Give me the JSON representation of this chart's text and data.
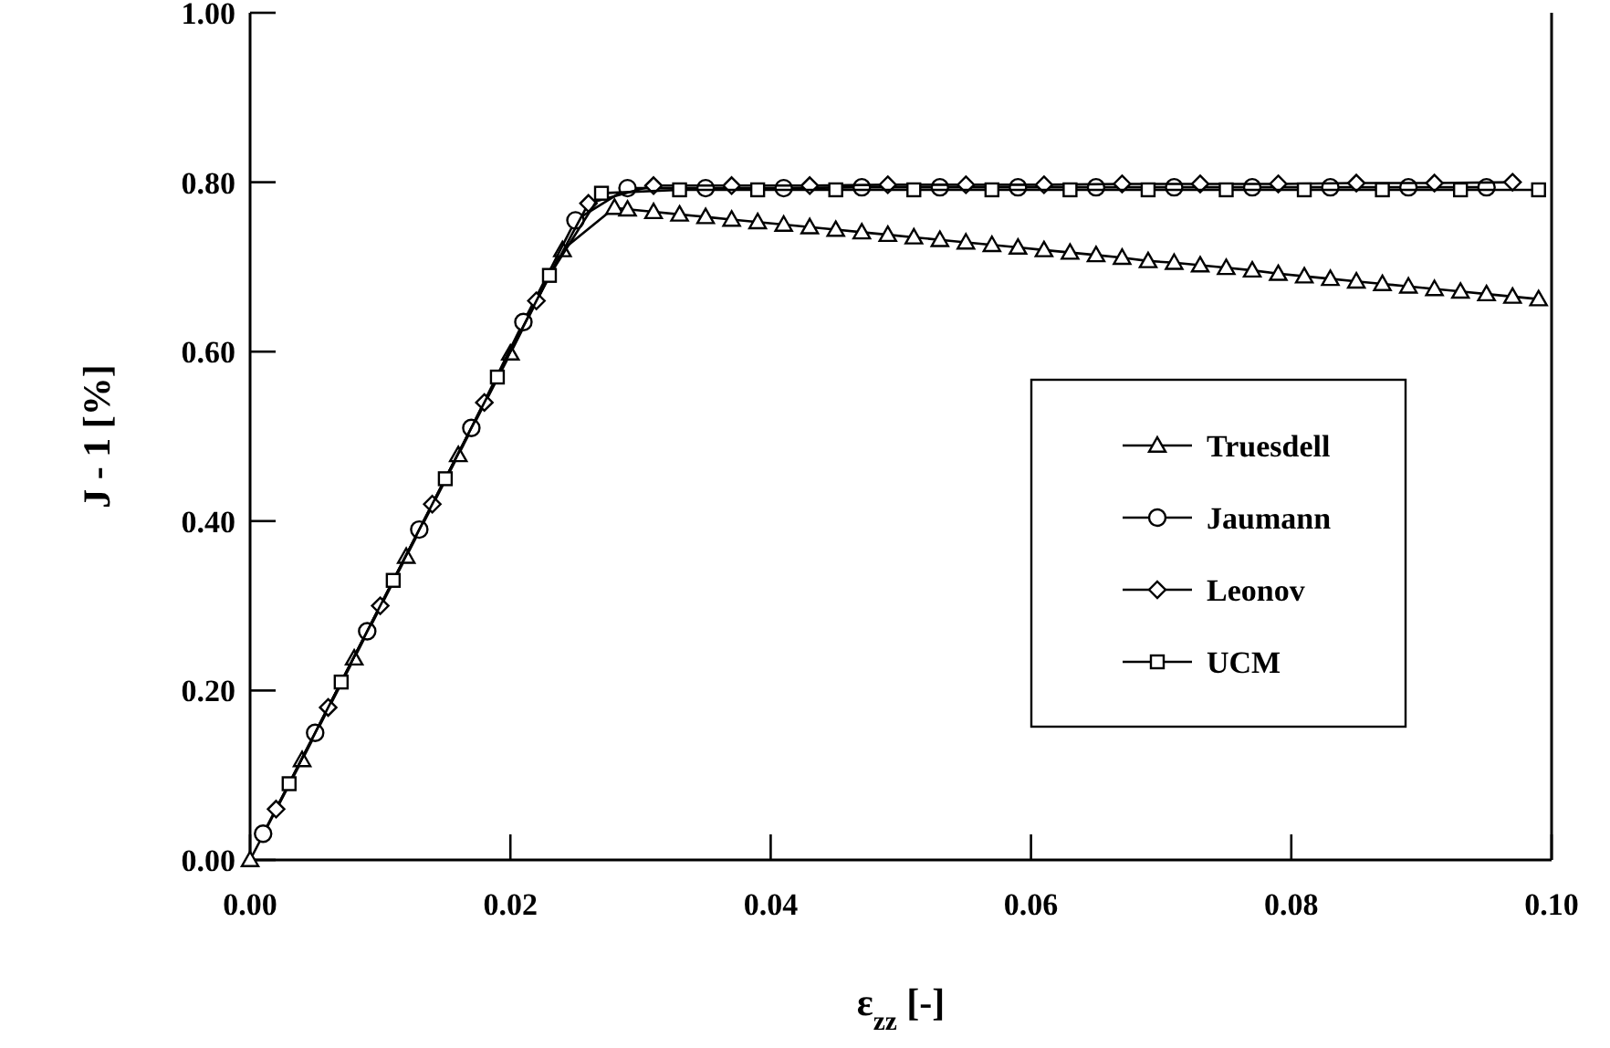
{
  "chart_data": {
    "type": "line",
    "xlabel": "ε$_{zz}$ [-]",
    "ylabel": "J - 1 [%]",
    "xlim": [
      0,
      0.1
    ],
    "ylim": [
      0,
      1
    ],
    "xticks": [
      {
        "value": 0,
        "label": "0.00"
      },
      {
        "value": 0.02,
        "label": "0.02"
      },
      {
        "value": 0.04,
        "label": "0.04"
      },
      {
        "value": 0.06,
        "label": "0.06"
      },
      {
        "value": 0.08,
        "label": "0.08"
      },
      {
        "value": 0.1,
        "label": "0.10"
      }
    ],
    "yticks": [
      {
        "value": 0,
        "label": "0.00"
      },
      {
        "value": 0.2,
        "label": "0.20"
      },
      {
        "value": 0.4,
        "label": "0.40"
      },
      {
        "value": 0.6,
        "label": "0.60"
      },
      {
        "value": 0.8,
        "label": "0.80"
      },
      {
        "value": 1,
        "label": "1.00"
      }
    ],
    "legend": "right",
    "grid": false,
    "line_style": "solid",
    "series": [
      {
        "name": "Truesdell",
        "color": "#000000",
        "marker": "triangle",
        "x": [
          0,
          0.004,
          0.008,
          0.012,
          0.016,
          0.02,
          0.024,
          0.028,
          0.029,
          0.031,
          0.033,
          0.035,
          0.037,
          0.039,
          0.041,
          0.043,
          0.045,
          0.047,
          0.049,
          0.051,
          0.053,
          0.055,
          0.057,
          0.059,
          0.061,
          0.063,
          0.065,
          0.067,
          0.069,
          0.071,
          0.073,
          0.075,
          0.077,
          0.079,
          0.081,
          0.083,
          0.085,
          0.087,
          0.089,
          0.091,
          0.093,
          0.095,
          0.097,
          0.099
        ],
        "values": [
          0,
          0.118,
          0.238,
          0.358,
          0.478,
          0.598,
          0.72,
          0.77,
          0.768,
          0.765,
          0.762,
          0.759,
          0.756,
          0.753,
          0.75,
          0.747,
          0.744,
          0.741,
          0.738,
          0.735,
          0.732,
          0.729,
          0.726,
          0.723,
          0.72,
          0.717,
          0.714,
          0.711,
          0.707,
          0.705,
          0.702,
          0.699,
          0.696,
          0.692,
          0.689,
          0.686,
          0.683,
          0.68,
          0.677,
          0.674,
          0.671,
          0.668,
          0.665,
          0.662
        ]
      },
      {
        "name": "Jaumann",
        "color": "#000000",
        "marker": "circle",
        "x": [
          0.001,
          0.005,
          0.009,
          0.013,
          0.017,
          0.021,
          0.025,
          0.029,
          0.035,
          0.041,
          0.047,
          0.053,
          0.059,
          0.065,
          0.071,
          0.077,
          0.083,
          0.089,
          0.095
        ],
        "values": [
          0.031,
          0.15,
          0.27,
          0.39,
          0.51,
          0.635,
          0.755,
          0.793,
          0.793,
          0.793,
          0.794,
          0.794,
          0.794,
          0.794,
          0.794,
          0.794,
          0.794,
          0.794,
          0.794
        ]
      },
      {
        "name": "Leonov",
        "color": "#000000",
        "marker": "diamond",
        "x": [
          0.002,
          0.006,
          0.01,
          0.014,
          0.018,
          0.022,
          0.026,
          0.031,
          0.037,
          0.043,
          0.049,
          0.055,
          0.061,
          0.067,
          0.073,
          0.079,
          0.085,
          0.091,
          0.097
        ],
        "values": [
          0.06,
          0.18,
          0.3,
          0.42,
          0.54,
          0.66,
          0.775,
          0.796,
          0.796,
          0.796,
          0.797,
          0.797,
          0.797,
          0.798,
          0.798,
          0.798,
          0.799,
          0.799,
          0.8
        ]
      },
      {
        "name": "UCM",
        "color": "#000000",
        "marker": "square",
        "x": [
          0.003,
          0.007,
          0.011,
          0.015,
          0.019,
          0.023,
          0.027,
          0.033,
          0.039,
          0.045,
          0.051,
          0.057,
          0.063,
          0.069,
          0.075,
          0.081,
          0.087,
          0.093,
          0.099
        ],
        "values": [
          0.09,
          0.21,
          0.33,
          0.45,
          0.57,
          0.69,
          0.787,
          0.791,
          0.791,
          0.791,
          0.791,
          0.791,
          0.791,
          0.791,
          0.791,
          0.791,
          0.791,
          0.791,
          0.791
        ]
      }
    ]
  }
}
